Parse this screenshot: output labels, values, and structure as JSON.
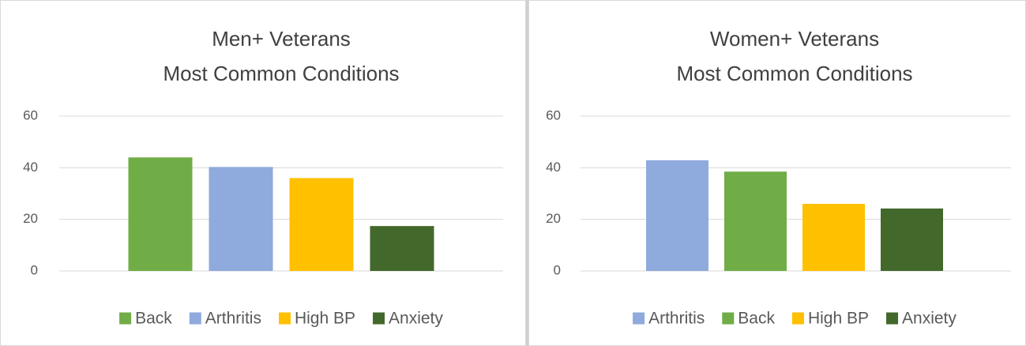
{
  "chart_data": [
    {
      "type": "bar",
      "title": [
        "Men+ Veterans",
        "Most Common Conditions"
      ],
      "categories": [
        null
      ],
      "series": [
        {
          "name": "Back",
          "color": "#70ad47",
          "values": [
            44
          ]
        },
        {
          "name": "Arthritis",
          "color": "#8faadc",
          "values": [
            40.3
          ]
        },
        {
          "name": "High BP",
          "color": "#ffc000",
          "values": [
            36
          ]
        },
        {
          "name": "Anxiety",
          "color": "#43682b",
          "values": [
            17.4
          ]
        }
      ],
      "ylim": [
        0,
        60
      ],
      "yticks": [
        0,
        20,
        40,
        60
      ],
      "grid": true,
      "legend": "bottom"
    },
    {
      "type": "bar",
      "title": [
        "Women+ Veterans",
        "Most Common Conditions"
      ],
      "categories": [
        null
      ],
      "series": [
        {
          "name": "Arthritis",
          "color": "#8faadc",
          "values": [
            42.9
          ]
        },
        {
          "name": "Back",
          "color": "#70ad47",
          "values": [
            38.5
          ]
        },
        {
          "name": "High BP",
          "color": "#ffc000",
          "values": [
            26
          ]
        },
        {
          "name": "Anxiety",
          "color": "#43682b",
          "values": [
            24.2
          ]
        }
      ],
      "ylim": [
        0,
        60
      ],
      "yticks": [
        0,
        20,
        40,
        60
      ],
      "grid": true,
      "legend": "bottom"
    }
  ]
}
